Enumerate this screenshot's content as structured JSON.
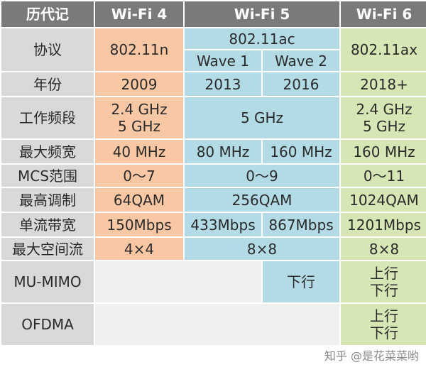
{
  "header": {
    "history": "历代记",
    "wifi4": "Wi-Fi 4",
    "wifi5": "Wi-Fi 5",
    "wifi6": "Wi-Fi 6"
  },
  "rows": {
    "protocol": {
      "label": "协议",
      "wifi4": "802.11n",
      "wifi5": "802.11ac",
      "wave1": "Wave 1",
      "wave2": "Wave 2",
      "wifi6": "802.11ax"
    },
    "year": {
      "label": "年份",
      "wifi4": "2009",
      "wave1": "2013",
      "wave2": "2016",
      "wifi6": "2018+"
    },
    "band": {
      "label": "工作频段",
      "wifi4_l1": "2.4 GHz",
      "wifi4_l2": "5 GHz",
      "wifi5": "5 GHz",
      "wifi6_l1": "2.4 GHz",
      "wifi6_l2": "5 GHz"
    },
    "bandwidth": {
      "label": "最大频宽",
      "wifi4": "40 MHz",
      "wave1": "80 MHz",
      "wave2": "160 MHz",
      "wifi6": "160 MHz"
    },
    "mcs": {
      "label": "MCS范围",
      "wifi4": "0～7",
      "wifi5": "0～9",
      "wifi6": "0～11"
    },
    "modulation": {
      "label": "最高调制",
      "wifi4": "64QAM",
      "wifi5": "256QAM",
      "wifi6": "1024QAM"
    },
    "single_stream": {
      "label": "单流带宽",
      "wifi4": "150Mbps",
      "wave1": "433Mbps",
      "wave2": "867Mbps",
      "wifi6": "1201Mbps"
    },
    "spatial_streams": {
      "label": "最大空间流",
      "wifi4": "4×4",
      "wifi5": "8×8",
      "wifi6": "8×8"
    },
    "mu_mimo": {
      "label": "MU-MIMO",
      "wave2": "下行",
      "wifi6_l1": "上行",
      "wifi6_l2": "下行"
    },
    "ofdma": {
      "label": "OFDMA",
      "wifi6_l1": "上行",
      "wifi6_l2": "下行"
    }
  },
  "watermark": "知乎 @是花菜菜哟"
}
